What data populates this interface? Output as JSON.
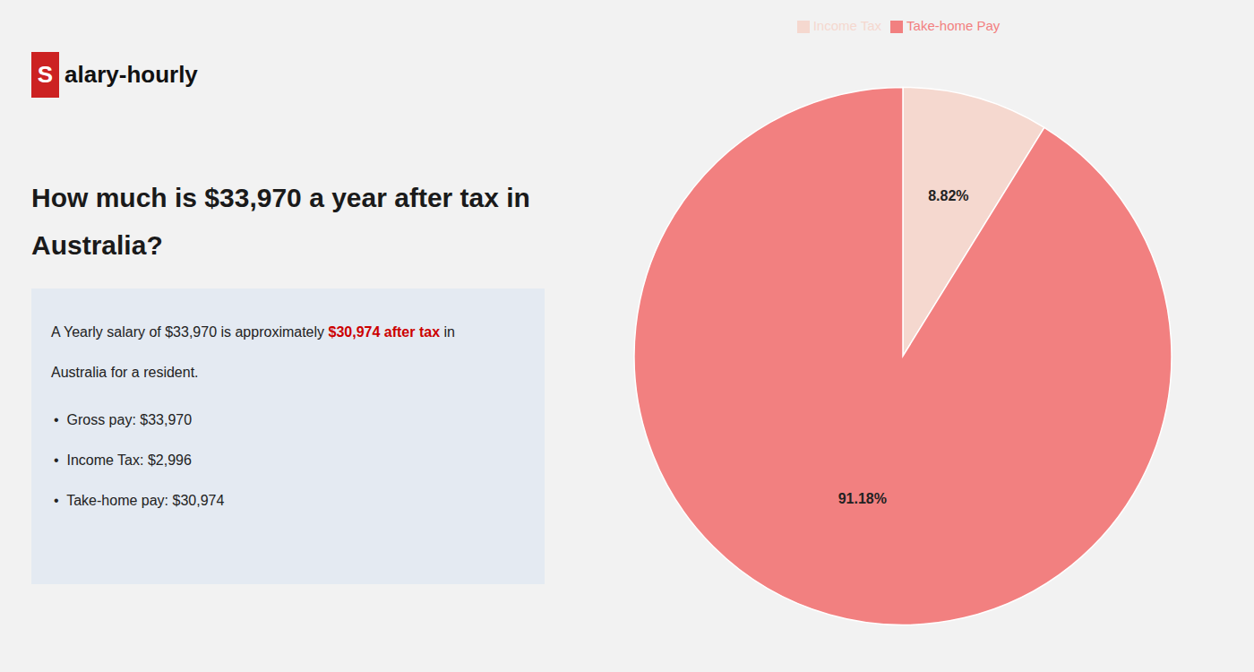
{
  "chart_data": {
    "type": "pie",
    "title": "How much is $33,970 a year after tax in\nAustralia?",
    "annotations": [
      {
        "text": "S",
        "color": "#cc2222"
      },
      {
        "text": "alary-hourly"
      },
      {
        "text": "A Yearly salary of $33,970 is approximately "
      },
      {
        "text": "$30,974 after tax",
        "color": "#cc0000"
      },
      {
        "text": " in"
      },
      {
        "text": "Australia for a resident."
      },
      {
        "text": "•  Gross pay: $33,970"
      },
      {
        "text": "•  Income Tax: $2,996"
      },
      {
        "text": "•  Take-home pay: $30,974"
      }
    ],
    "categories": [
      "Income Tax",
      "Take-home Pay"
    ],
    "values": [
      8.82,
      91.18
    ],
    "value_labels": [
      "8.82%",
      "91.18%"
    ],
    "colors": [
      "#f5d8cf",
      "#f28080"
    ],
    "data_labels": true,
    "legend": "top"
  }
}
